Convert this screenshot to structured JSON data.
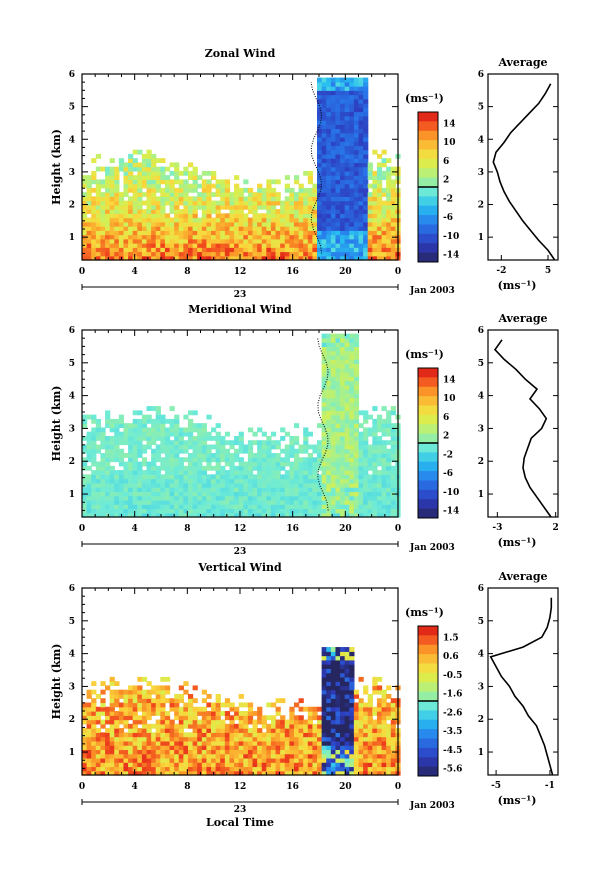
{
  "chart_data": [
    {
      "type": "heatmap",
      "title": "Zonal Wind",
      "ylabel": "Height (km)",
      "xlabel": "",
      "date_label": "23",
      "month_label": "Jan 2003",
      "xlim": [
        0,
        24
      ],
      "ylim": [
        0.3,
        6
      ],
      "x_ticks": [
        "0",
        "4",
        "8",
        "12",
        "16",
        "20",
        "0"
      ],
      "y_ticks": [
        "1",
        "2",
        "3",
        "4",
        "5",
        "6"
      ],
      "colorbar": {
        "unit": "(ms⁻¹)",
        "min": -16,
        "max": 16,
        "ticks": [
          "14",
          "10",
          "6",
          "2",
          "-2",
          "-6",
          "-10",
          "-14"
        ]
      },
      "field": {
        "base_near_ground": 12,
        "decay_height": 2.2,
        "top_data_height_morning": 2.9,
        "jet_start": 17.5,
        "jet_end": 21.5,
        "jet_top": 5.8,
        "jet_value": -10
      },
      "average_profile": {
        "title": "Average",
        "xlabel": "(ms⁻¹)",
        "x_ticks": [
          "-2",
          "5"
        ],
        "xlim": [
          -4,
          6.5
        ],
        "height": [
          0.3,
          0.6,
          0.9,
          1.2,
          1.5,
          1.8,
          2.1,
          2.4,
          2.7,
          3.0,
          3.3,
          3.6,
          3.9,
          4.2,
          4.5,
          4.8,
          5.1,
          5.4,
          5.7
        ],
        "value": [
          6.0,
          5.0,
          3.6,
          2.4,
          1.2,
          0.2,
          -0.8,
          -1.6,
          -2.2,
          -2.6,
          -3.2,
          -2.8,
          -1.6,
          -0.6,
          0.8,
          2.2,
          3.6,
          4.6,
          5.4
        ]
      }
    },
    {
      "type": "heatmap",
      "title": "Meridional Wind",
      "ylabel": "Height (km)",
      "xlabel": "",
      "date_label": "23",
      "month_label": "Jan 2003",
      "xlim": [
        0,
        24
      ],
      "ylim": [
        0.3,
        6
      ],
      "x_ticks": [
        "0",
        "4",
        "8",
        "12",
        "16",
        "20",
        "0"
      ],
      "y_ticks": [
        "1",
        "2",
        "3",
        "4",
        "5",
        "6"
      ],
      "colorbar": {
        "unit": "(ms⁻¹)",
        "min": -16,
        "max": 16,
        "ticks": [
          "14",
          "10",
          "6",
          "2",
          "-2",
          "-6",
          "-10",
          "-14"
        ]
      },
      "field": {
        "base_near_ground": -1,
        "decay_height": 2.5,
        "top_data_height_morning": 3.0,
        "jet_start": 18.0,
        "jet_end": 21.0,
        "jet_top": 5.8,
        "jet_value": 2
      },
      "average_profile": {
        "title": "Average",
        "xlabel": "(ms⁻¹)",
        "x_ticks": [
          "-3",
          "2"
        ],
        "xlim": [
          -3.8,
          2.2
        ],
        "height": [
          0.3,
          0.6,
          0.9,
          1.2,
          1.5,
          1.8,
          2.1,
          2.4,
          2.7,
          3.0,
          3.3,
          3.6,
          3.9,
          4.2,
          4.5,
          4.8,
          5.1,
          5.4,
          5.7
        ],
        "value": [
          1.6,
          1.0,
          0.4,
          -0.2,
          -0.6,
          -0.8,
          -0.7,
          -0.4,
          -0.1,
          0.8,
          1.2,
          0.6,
          -0.2,
          0.4,
          -0.6,
          -1.4,
          -2.4,
          -3.2,
          -2.6
        ]
      }
    },
    {
      "type": "heatmap",
      "title": "Vertical Wind",
      "ylabel": "Height (km)",
      "xlabel": "Local Time",
      "date_label": "23",
      "month_label": "Jan 2003",
      "xlim": [
        0,
        24
      ],
      "ylim": [
        0.3,
        6
      ],
      "x_ticks": [
        "0",
        "4",
        "8",
        "12",
        "16",
        "20",
        "0"
      ],
      "y_ticks": [
        "1",
        "2",
        "3",
        "4",
        "5",
        "6"
      ],
      "colorbar": {
        "unit": "(ms⁻¹)",
        "min": -6,
        "max": 2,
        "ticks": [
          "1.5",
          "0.6",
          "-0.5",
          "-1.6",
          "-2.6",
          "-3.5",
          "-4.5",
          "-5.6"
        ]
      },
      "field": {
        "base_near_ground": 0.6,
        "decay_height": 3.0,
        "top_data_height_morning": 2.6,
        "jet_start": 18.2,
        "jet_end": 20.6,
        "jet_top": 4.1,
        "jet_value": -6
      },
      "average_profile": {
        "title": "Average",
        "xlabel": "(ms⁻¹)",
        "x_ticks": [
          "-5",
          "-1"
        ],
        "xlim": [
          -5.6,
          -0.4
        ],
        "height": [
          0.3,
          0.6,
          0.9,
          1.2,
          1.5,
          1.8,
          2.1,
          2.4,
          2.7,
          3.0,
          3.3,
          3.6,
          3.9,
          4.2,
          4.5,
          4.8,
          5.1,
          5.4,
          5.7
        ],
        "value": [
          -0.8,
          -1.0,
          -1.2,
          -1.4,
          -1.7,
          -2.0,
          -2.6,
          -3.0,
          -3.6,
          -4.0,
          -4.6,
          -5.0,
          -5.4,
          -3.0,
          -1.6,
          -1.2,
          -1.0,
          -0.9,
          -0.9
        ]
      }
    }
  ]
}
